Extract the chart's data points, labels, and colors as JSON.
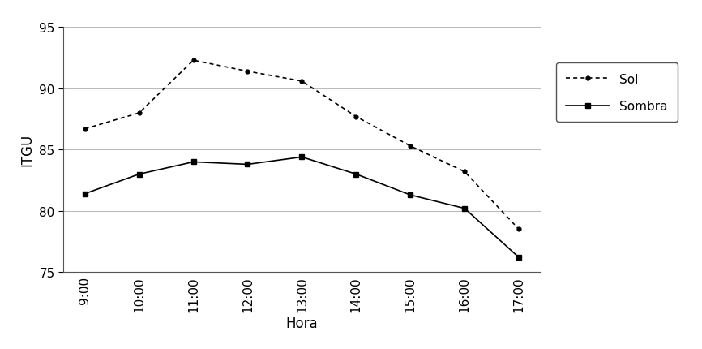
{
  "hours": [
    "9:00",
    "10:00",
    "11:00",
    "12:00",
    "13:00",
    "14:00",
    "15:00",
    "16:00",
    "17:00"
  ],
  "sol": [
    86.7,
    88.0,
    92.3,
    91.4,
    90.6,
    87.7,
    85.3,
    83.2,
    78.5
  ],
  "sombra": [
    81.4,
    83.0,
    84.0,
    83.8,
    84.4,
    83.0,
    81.3,
    80.2,
    76.2
  ],
  "sol_label": "Sol",
  "sombra_label": "Sombra",
  "xlabel": "Hora",
  "ylabel": "ITGU",
  "ylim": [
    75,
    95
  ],
  "yticks": [
    75,
    80,
    85,
    90,
    95
  ],
  "grid_color": "#bbbbbb",
  "line_color": "#000000",
  "background_color": "#ffffff",
  "legend_fontsize": 11,
  "axis_fontsize": 12,
  "tick_fontsize": 11
}
